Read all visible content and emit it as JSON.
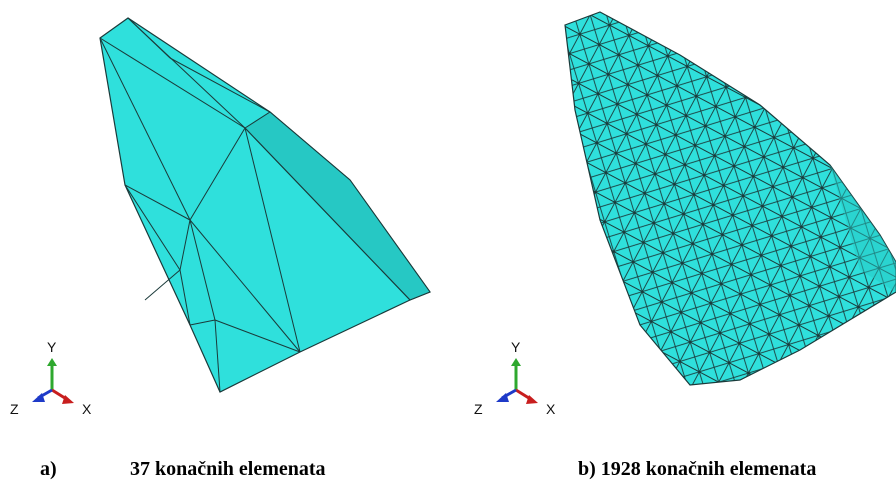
{
  "figures": [
    {
      "id": "a",
      "caption_letter": "a)",
      "caption_text": "37 konačnih elemenata",
      "axes": {
        "y": "Y",
        "x": "X",
        "z": "Z"
      }
    },
    {
      "id": "b",
      "caption": "b) 1928 konačnih elemenata",
      "axes": {
        "y": "Y",
        "x": "X",
        "z": "Z"
      }
    }
  ],
  "colors": {
    "mesh_fill": "#2fe0dc",
    "mesh_fill_dark": "#26c8c4",
    "edge": "#1a3a3a",
    "axis_y": "#2ea82e",
    "axis_x": "#c81e1e",
    "axis_z": "#1e3ac8"
  }
}
